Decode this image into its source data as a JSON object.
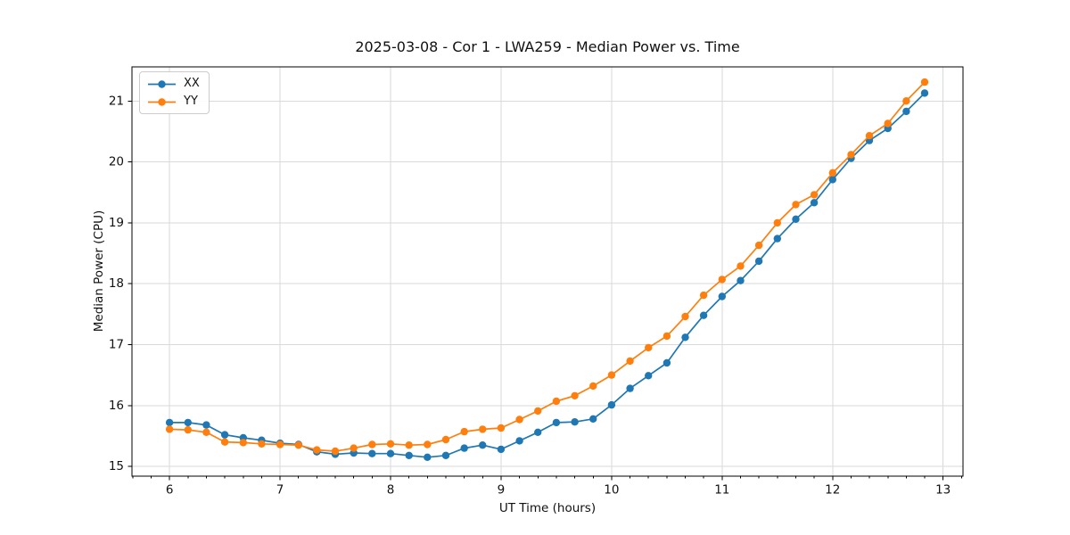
{
  "figure": {
    "title": "2025-03-08 - Cor 1 - LWA259 - Median Power vs. Time",
    "background_color": "#ffffff",
    "text_color": "#111111",
    "grid_color": "#d9d9d9",
    "spine_color": "#000000"
  },
  "chart_data": {
    "type": "line",
    "title": "2025-03-08 - Cor 1 - LWA259 - Median Power vs. Time",
    "xlabel": "UT Time (hours)",
    "ylabel": "Median Power (CPU)",
    "xlim": [
      5.66,
      13.18
    ],
    "ylim": [
      14.84,
      21.56
    ],
    "x_ticks": [
      6,
      7,
      8,
      9,
      10,
      11,
      12,
      13
    ],
    "y_ticks": [
      15,
      16,
      17,
      18,
      19,
      20,
      21
    ],
    "x_minor_step": 0.16667,
    "grid": true,
    "legend_position": "upper-left",
    "marker": "circle",
    "x": [
      6.0,
      6.167,
      6.333,
      6.5,
      6.667,
      6.833,
      7.0,
      7.167,
      7.333,
      7.5,
      7.667,
      7.833,
      8.0,
      8.167,
      8.333,
      8.5,
      8.667,
      8.833,
      9.0,
      9.167,
      9.333,
      9.5,
      9.667,
      9.833,
      10.0,
      10.167,
      10.333,
      10.5,
      10.667,
      10.833,
      11.0,
      11.167,
      11.333,
      11.5,
      11.667,
      11.833,
      12.0,
      12.167,
      12.333,
      12.5,
      12.667,
      12.833
    ],
    "series": [
      {
        "name": "XX",
        "color": "#1f77b4",
        "values": [
          15.72,
          15.72,
          15.68,
          15.52,
          15.47,
          15.43,
          15.38,
          15.36,
          15.24,
          15.2,
          15.22,
          15.21,
          15.21,
          15.18,
          15.15,
          15.18,
          15.3,
          15.35,
          15.28,
          15.42,
          15.56,
          15.72,
          15.73,
          15.78,
          16.01,
          16.28,
          16.49,
          16.7,
          17.12,
          17.48,
          17.79,
          18.05,
          18.37,
          18.74,
          19.06,
          19.33,
          19.71,
          20.06,
          20.35,
          20.55,
          20.83,
          21.13
        ]
      },
      {
        "name": "YY",
        "color": "#ff7f0e",
        "values": [
          15.61,
          15.6,
          15.56,
          15.4,
          15.39,
          15.37,
          15.36,
          15.35,
          15.27,
          15.25,
          15.3,
          15.36,
          15.37,
          15.35,
          15.36,
          15.44,
          15.57,
          15.61,
          15.63,
          15.77,
          15.91,
          16.07,
          16.16,
          16.32,
          16.5,
          16.73,
          16.95,
          17.14,
          17.46,
          17.81,
          18.07,
          18.29,
          18.63,
          19.0,
          19.3,
          19.46,
          19.82,
          20.12,
          20.43,
          20.63,
          21.0,
          21.31
        ]
      }
    ]
  }
}
